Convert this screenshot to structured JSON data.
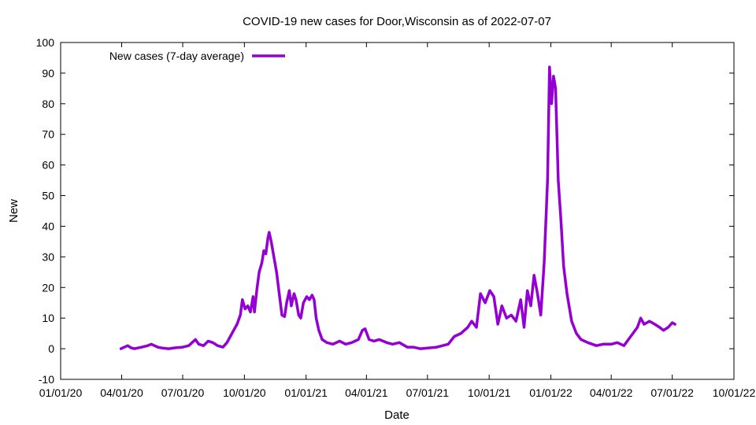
{
  "chart_data": {
    "type": "line",
    "title": "COVID-19 new cases for Door,Wisconsin as of 2022-07-07",
    "xlabel": "Date",
    "ylabel": "New",
    "ylim": [
      -10,
      100
    ],
    "xlim": [
      "2020-01-01",
      "2022-10-01"
    ],
    "x_tick_labels": [
      "01/01/20",
      "04/01/20",
      "07/01/20",
      "10/01/20",
      "01/01/21",
      "04/01/21",
      "07/01/21",
      "10/01/21",
      "01/01/22",
      "04/01/22",
      "07/01/22",
      "10/01/22"
    ],
    "y_ticks": [
      -10,
      0,
      10,
      20,
      30,
      40,
      50,
      60,
      70,
      80,
      90,
      100
    ],
    "grid": false,
    "legend": {
      "position": "top-left"
    },
    "series": [
      {
        "name": "New cases (7-day average)",
        "color": "#9400d3",
        "points": [
          [
            "2020-03-31",
            0
          ],
          [
            "2020-04-05",
            0.5
          ],
          [
            "2020-04-10",
            1
          ],
          [
            "2020-04-15",
            0.3
          ],
          [
            "2020-04-20",
            0
          ],
          [
            "2020-05-01",
            0.5
          ],
          [
            "2020-05-10",
            1
          ],
          [
            "2020-05-15",
            1.5
          ],
          [
            "2020-05-20",
            1
          ],
          [
            "2020-05-25",
            0.5
          ],
          [
            "2020-06-01",
            0.2
          ],
          [
            "2020-06-10",
            0
          ],
          [
            "2020-06-20",
            0.3
          ],
          [
            "2020-07-01",
            0.5
          ],
          [
            "2020-07-10",
            1
          ],
          [
            "2020-07-15",
            2
          ],
          [
            "2020-07-20",
            3
          ],
          [
            "2020-07-25",
            1.5
          ],
          [
            "2020-08-01",
            1
          ],
          [
            "2020-08-08",
            2.5
          ],
          [
            "2020-08-15",
            2
          ],
          [
            "2020-08-22",
            1
          ],
          [
            "2020-08-30",
            0.5
          ],
          [
            "2020-09-05",
            2
          ],
          [
            "2020-09-10",
            4
          ],
          [
            "2020-09-15",
            6
          ],
          [
            "2020-09-20",
            8
          ],
          [
            "2020-09-25",
            11
          ],
          [
            "2020-09-28",
            16
          ],
          [
            "2020-10-02",
            13
          ],
          [
            "2020-10-06",
            14
          ],
          [
            "2020-10-10",
            12
          ],
          [
            "2020-10-14",
            17
          ],
          [
            "2020-10-16",
            12
          ],
          [
            "2020-10-20",
            20
          ],
          [
            "2020-10-23",
            25
          ],
          [
            "2020-10-27",
            28
          ],
          [
            "2020-10-30",
            32
          ],
          [
            "2020-11-02",
            31
          ],
          [
            "2020-11-05",
            36
          ],
          [
            "2020-11-07",
            38
          ],
          [
            "2020-11-10",
            35
          ],
          [
            "2020-11-14",
            30
          ],
          [
            "2020-11-18",
            25
          ],
          [
            "2020-11-22",
            18
          ],
          [
            "2020-11-26",
            11
          ],
          [
            "2020-11-30",
            10.5
          ],
          [
            "2020-12-03",
            15
          ],
          [
            "2020-12-07",
            19
          ],
          [
            "2020-12-10",
            14
          ],
          [
            "2020-12-14",
            18
          ],
          [
            "2020-12-17",
            16
          ],
          [
            "2020-12-21",
            11
          ],
          [
            "2020-12-24",
            10
          ],
          [
            "2020-12-28",
            15
          ],
          [
            "2021-01-02",
            17
          ],
          [
            "2021-01-06",
            16
          ],
          [
            "2021-01-10",
            17.5
          ],
          [
            "2021-01-13",
            16
          ],
          [
            "2021-01-16",
            10
          ],
          [
            "2021-01-20",
            6
          ],
          [
            "2021-01-25",
            3
          ],
          [
            "2021-02-01",
            2
          ],
          [
            "2021-02-10",
            1.5
          ],
          [
            "2021-02-20",
            2.5
          ],
          [
            "2021-03-01",
            1.5
          ],
          [
            "2021-03-10",
            2
          ],
          [
            "2021-03-20",
            3
          ],
          [
            "2021-03-26",
            6
          ],
          [
            "2021-03-30",
            6.5
          ],
          [
            "2021-04-05",
            3
          ],
          [
            "2021-04-12",
            2.5
          ],
          [
            "2021-04-20",
            3
          ],
          [
            "2021-05-01",
            2
          ],
          [
            "2021-05-10",
            1.5
          ],
          [
            "2021-05-20",
            2
          ],
          [
            "2021-06-01",
            0.5
          ],
          [
            "2021-06-10",
            0.5
          ],
          [
            "2021-06-20",
            0
          ],
          [
            "2021-07-01",
            0.2
          ],
          [
            "2021-07-15",
            0.5
          ],
          [
            "2021-08-01",
            1.5
          ],
          [
            "2021-08-10",
            4
          ],
          [
            "2021-08-20",
            5
          ],
          [
            "2021-08-30",
            7
          ],
          [
            "2021-09-05",
            9
          ],
          [
            "2021-09-12",
            7
          ],
          [
            "2021-09-18",
            18
          ],
          [
            "2021-09-25",
            15
          ],
          [
            "2021-10-02",
            19
          ],
          [
            "2021-10-08",
            17
          ],
          [
            "2021-10-14",
            8
          ],
          [
            "2021-10-20",
            14
          ],
          [
            "2021-10-27",
            10
          ],
          [
            "2021-11-03",
            11
          ],
          [
            "2021-11-10",
            9
          ],
          [
            "2021-11-17",
            16
          ],
          [
            "2021-11-22",
            7
          ],
          [
            "2021-11-27",
            19
          ],
          [
            "2021-12-02",
            14
          ],
          [
            "2021-12-07",
            24
          ],
          [
            "2021-12-12",
            18
          ],
          [
            "2021-12-17",
            11
          ],
          [
            "2021-12-22",
            28
          ],
          [
            "2021-12-27",
            55
          ],
          [
            "2021-12-30",
            92
          ],
          [
            "2022-01-02",
            80
          ],
          [
            "2022-01-05",
            89
          ],
          [
            "2022-01-08",
            85
          ],
          [
            "2022-01-12",
            55
          ],
          [
            "2022-01-16",
            42
          ],
          [
            "2022-01-20",
            27
          ],
          [
            "2022-01-25",
            18
          ],
          [
            "2022-02-01",
            9
          ],
          [
            "2022-02-08",
            5
          ],
          [
            "2022-02-15",
            3
          ],
          [
            "2022-02-25",
            2
          ],
          [
            "2022-03-10",
            1
          ],
          [
            "2022-03-20",
            1.5
          ],
          [
            "2022-04-01",
            1.5
          ],
          [
            "2022-04-10",
            2
          ],
          [
            "2022-04-20",
            1
          ],
          [
            "2022-04-30",
            4
          ],
          [
            "2022-05-10",
            7
          ],
          [
            "2022-05-15",
            10
          ],
          [
            "2022-05-20",
            8
          ],
          [
            "2022-05-28",
            9
          ],
          [
            "2022-06-05",
            8
          ],
          [
            "2022-06-12",
            7
          ],
          [
            "2022-06-18",
            6
          ],
          [
            "2022-06-25",
            7
          ],
          [
            "2022-07-01",
            8.5
          ],
          [
            "2022-07-05",
            8
          ]
        ]
      }
    ]
  }
}
